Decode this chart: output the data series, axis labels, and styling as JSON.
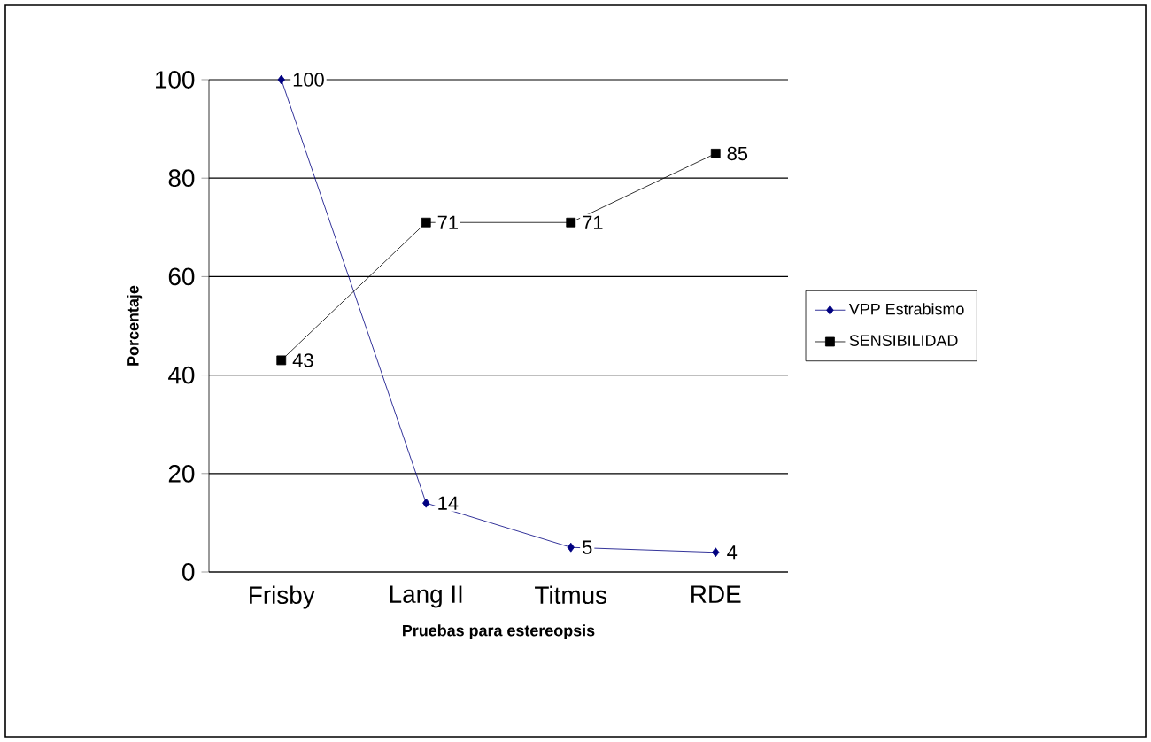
{
  "chart_data": {
    "type": "line",
    "xlabel": "Pruebas para estereopsis",
    "ylabel": "Porcentaje",
    "categories": [
      "Frisby",
      "Lang II",
      "Titmus",
      "RDE"
    ],
    "series": [
      {
        "name": "VPP Estrabismo",
        "color": "#000080",
        "marker": "diamond",
        "values": [
          100,
          14,
          5,
          4
        ]
      },
      {
        "name": "SENSIBILIDAD",
        "color": "#000000",
        "marker": "square",
        "values": [
          43,
          71,
          71,
          85
        ]
      }
    ],
    "ylim": [
      0,
      100
    ],
    "yticks": [
      0,
      20,
      40,
      60,
      80,
      100
    ],
    "grid": "y",
    "legend": "right",
    "data_labels": true,
    "line_style": "solid"
  }
}
